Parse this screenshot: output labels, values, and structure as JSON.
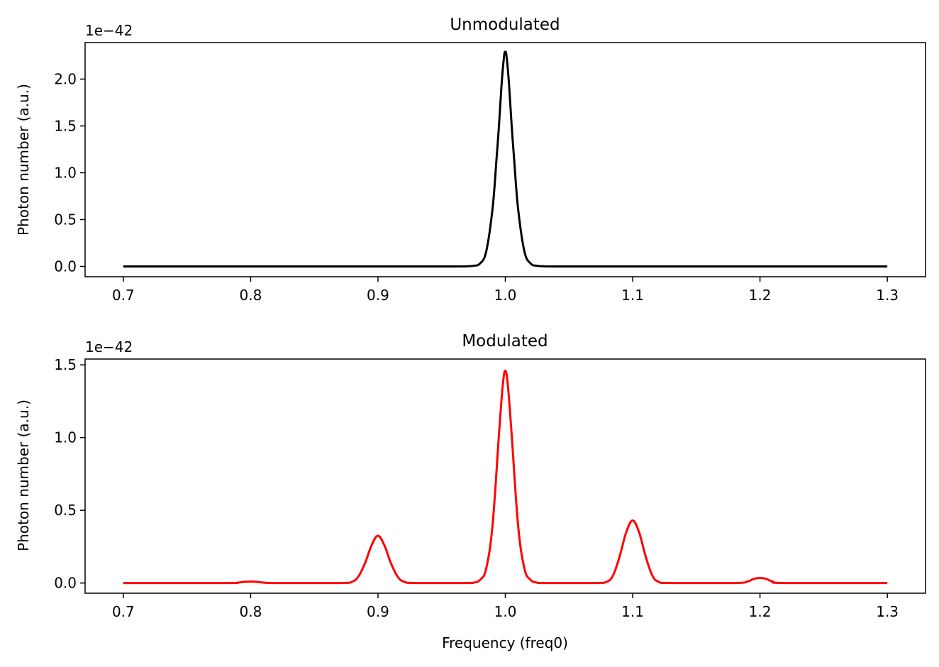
{
  "chart_data": [
    {
      "type": "line",
      "title": "Unmodulated",
      "xlabel": "",
      "ylabel": "Photon number (a.u.)",
      "y_offset_label": "1e−42",
      "xlim": [
        0.67,
        1.33
      ],
      "ylim": [
        -0.11,
        2.39
      ],
      "xticks": [
        "0.7",
        "0.8",
        "0.9",
        "1.0",
        "1.1",
        "1.2",
        "1.3"
      ],
      "yticks": [
        "0.0",
        "0.5",
        "1.0",
        "1.5",
        "2.0"
      ],
      "color": "#000000",
      "series": [
        {
          "x": [
            0.7,
            0.9,
            0.96,
            0.97,
            0.975,
            0.98,
            0.985,
            0.99,
            0.993,
            0.995,
            0.997,
            0.999,
            1.0,
            1.001,
            1.003,
            1.005,
            1.007,
            1.01,
            1.015,
            1.02,
            1.025,
            1.03,
            1.04,
            1.1,
            1.3
          ],
          "y": [
            0,
            0,
            0,
            0.002,
            0.007,
            0.03,
            0.16,
            0.62,
            1.13,
            1.5,
            1.93,
            2.24,
            2.29,
            2.24,
            1.93,
            1.5,
            1.13,
            0.62,
            0.16,
            0.03,
            0.007,
            0.002,
            0,
            0,
            0
          ]
        }
      ]
    },
    {
      "type": "line",
      "title": "Modulated",
      "xlabel": "Frequency (freq0)",
      "ylabel": "Photon number (a.u.)",
      "y_offset_label": "1e−42",
      "xlim": [
        0.67,
        1.33
      ],
      "ylim": [
        -0.07,
        1.54
      ],
      "xticks": [
        "0.7",
        "0.8",
        "0.9",
        "1.0",
        "1.1",
        "1.2",
        "1.3"
      ],
      "yticks": [
        "0.0",
        "0.5",
        "1.0",
        "1.5"
      ],
      "color": "#ff0000",
      "series": [
        {
          "x": [
            0.7,
            0.78,
            0.79,
            0.795,
            0.8,
            0.805,
            0.81,
            0.82,
            0.87,
            0.88,
            0.885,
            0.89,
            0.895,
            0.9,
            0.905,
            0.91,
            0.915,
            0.92,
            0.93,
            0.97,
            0.975,
            0.98,
            0.985,
            0.99,
            0.995,
            0.998,
            1.0,
            1.002,
            1.005,
            1.01,
            1.015,
            1.02,
            1.025,
            1.03,
            1.07,
            1.08,
            1.085,
            1.09,
            1.095,
            1.1,
            1.105,
            1.11,
            1.115,
            1.12,
            1.13,
            1.18,
            1.19,
            1.195,
            1.2,
            1.205,
            1.21,
            1.22,
            1.3
          ],
          "y": [
            0,
            0,
            0.003,
            0.008,
            0.01,
            0.008,
            0.003,
            0,
            0,
            0.01,
            0.05,
            0.14,
            0.26,
            0.325,
            0.26,
            0.14,
            0.05,
            0.01,
            0,
            0,
            0.003,
            0.02,
            0.1,
            0.4,
            1.02,
            1.36,
            1.46,
            1.36,
            1.02,
            0.4,
            0.1,
            0.02,
            0.003,
            0,
            0,
            0.01,
            0.06,
            0.19,
            0.35,
            0.43,
            0.35,
            0.19,
            0.06,
            0.01,
            0,
            0,
            0.01,
            0.028,
            0.035,
            0.028,
            0.01,
            0,
            0
          ]
        }
      ]
    }
  ]
}
